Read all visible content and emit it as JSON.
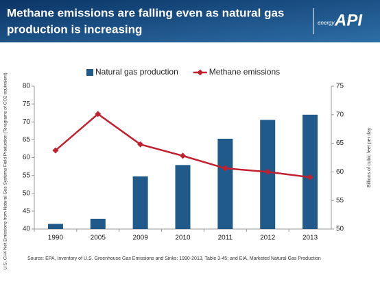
{
  "chart_data": {
    "type": "combo",
    "title": [
      "Methane emissions are falling even as natural gas",
      "production is increasing"
    ],
    "brand": {
      "tagline": "energy",
      "name": "API"
    },
    "categories": [
      "1990",
      "2005",
      "2009",
      "2010",
      "2011",
      "2012",
      "2013"
    ],
    "series": [
      {
        "name": "Natural gas production",
        "type": "bar",
        "axis": "y2",
        "color": "#1f5a8b",
        "values": [
          50.9,
          51.8,
          59.2,
          61.2,
          65.8,
          69.1,
          70.0
        ]
      },
      {
        "name": "Methane emissions",
        "type": "line",
        "axis": "y",
        "color": "#c1202f",
        "values": [
          62.0,
          72.2,
          63.7,
          60.5,
          57.0,
          56.0,
          54.5
        ]
      }
    ],
    "ylim": [
      40,
      80
    ],
    "yticks": [
      40,
      45,
      50,
      55,
      60,
      65,
      70,
      75,
      80
    ],
    "y2lim": [
      50,
      75
    ],
    "y2ticks": [
      50,
      55,
      60,
      65,
      70,
      75
    ],
    "ylabel": "U.S. CH4 Net Emissions from Natural Gas Systems Field Production (Teragrams of CO2 equivalent)",
    "y2label": "Billions of cubic feet per day",
    "legend": "top",
    "grid": false,
    "source": "Source:  EPA, Inventory  of U.S. Greenhouse  Gas Emissions and Sinks:  1990-2013,  Table 3-45; and EIA, Marketed Natural Gas Production"
  }
}
